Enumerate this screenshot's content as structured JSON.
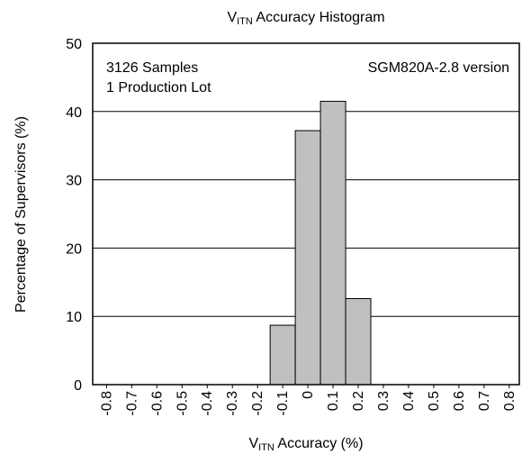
{
  "chart_data": {
    "type": "histogram",
    "title": [
      "V",
      "ITN",
      " Accuracy Histogram"
    ],
    "xlabel": [
      "V",
      "ITN",
      " Accuracy (%)"
    ],
    "ylabel": "Percentage of Supervisors (%)",
    "annotations": [
      "3126 Samples",
      "1 Production Lot",
      "SGM820A-2.8 version"
    ],
    "bins": [
      -0.15,
      -0.05,
      0.05,
      0.15,
      0.25
    ],
    "values": [
      8.7,
      37.2,
      41.5,
      12.6
    ],
    "color": "#c0c0c0",
    "xlim": [
      -0.855,
      0.84
    ],
    "xticks": [
      -0.8,
      -0.7,
      -0.6,
      -0.5,
      -0.4,
      -0.3,
      -0.2,
      -0.1,
      0,
      0.1,
      0.2,
      0.3,
      0.4,
      0.5,
      0.6,
      0.7,
      0.8
    ],
    "ylim": [
      0,
      50
    ],
    "yticks": [
      0,
      10,
      20,
      30,
      40,
      50
    ],
    "grid": true
  }
}
